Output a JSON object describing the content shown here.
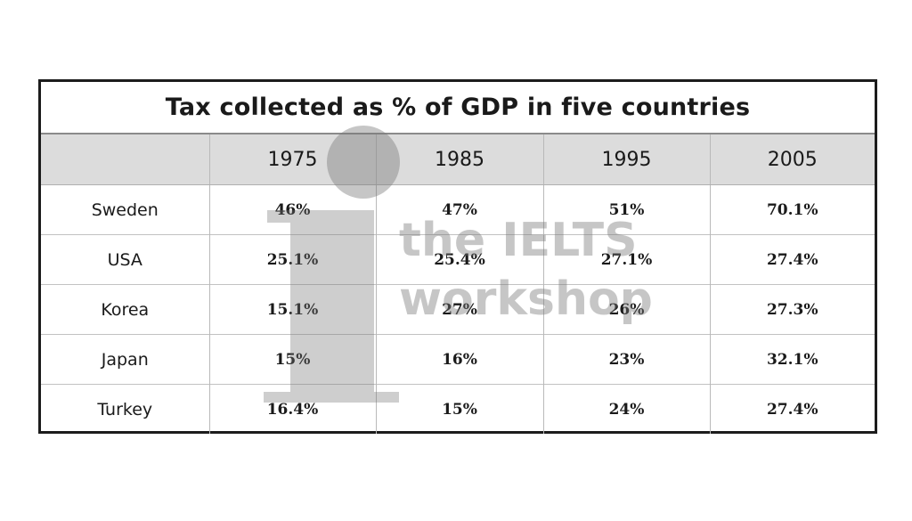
{
  "chart_data": {
    "type": "table",
    "title": "Tax collected as % of GDP in five countries",
    "columns": [
      "1975",
      "1985",
      "1995",
      "2005"
    ],
    "rows": [
      {
        "country": "Sweden",
        "values": [
          "46%",
          "47%",
          "51%",
          "70.1%"
        ]
      },
      {
        "country": "USA",
        "values": [
          "25.1%",
          "25.4%",
          "27.1%",
          "27.4%"
        ]
      },
      {
        "country": "Korea",
        "values": [
          "15.1%",
          "27%",
          "26%",
          "27.3%"
        ]
      },
      {
        "country": "Japan",
        "values": [
          "15%",
          "16%",
          "23%",
          "32.1%"
        ]
      },
      {
        "country": "Turkey",
        "values": [
          "16.4%",
          "15%",
          "24%",
          "27.4%"
        ]
      }
    ]
  },
  "watermark": {
    "line1": "the IELTS",
    "line2": "workshop",
    "icon": "info-i-logo",
    "color": "#8a8a8a"
  }
}
